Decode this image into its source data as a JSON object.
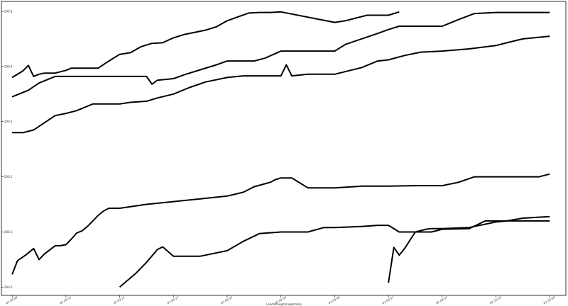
{
  "chart_data": {
    "type": "line",
    "title": "",
    "xlabel": "Leadsolve@time@stamp",
    "ylabel": "",
    "x_ticks": [
      "02 09:09",
      "02 09:15",
      "02 09:21",
      "02 09:27",
      "02 09:33",
      "02 09:39",
      "02 09:45",
      "02 09:51",
      "02 09:57",
      "02 10:03",
      "02 10:09"
    ],
    "y_ticks": [
      {
        "value": 200.0,
        "label": "200.0"
      },
      {
        "value": 200.1,
        "label": "200.1"
      },
      {
        "value": 200.2,
        "label": "200.2"
      },
      {
        "value": 200.3,
        "label": "200.3"
      },
      {
        "value": 200.4,
        "label": "200.4"
      },
      {
        "value": 200.5,
        "label": "200.5"
      }
    ],
    "xlim": [
      -0.2,
      10.3
    ],
    "ylim": [
      199.985,
      200.518
    ],
    "grid": false,
    "line_color": "#000000",
    "series": [
      {
        "x": [
          0,
          0.2,
          0.3,
          0.4,
          0.45,
          0.5,
          0.6,
          0.8,
          1.0,
          1.1,
          1.3,
          1.5,
          1.6,
          1.8,
          2.0,
          2.2,
          2.4,
          2.6,
          2.8,
          3.0,
          3.2,
          3.4,
          3.6,
          3.8,
          4.0,
          4.2,
          4.4,
          4.6,
          4.8,
          5.0,
          6.0,
          6.2,
          6.4,
          6.6,
          6.8,
          7.0,
          7.2
        ],
        "y": [
          200.38,
          200.392,
          200.402,
          200.382,
          200.384,
          200.386,
          200.388,
          200.388,
          200.393,
          200.397,
          200.397,
          200.397,
          200.397,
          200.41,
          200.422,
          200.425,
          200.436,
          200.442,
          200.443,
          200.452,
          200.458,
          200.462,
          200.466,
          200.472,
          200.483,
          200.49,
          200.497,
          200.498,
          200.498,
          200.499,
          200.48,
          200.483,
          200.488,
          200.493,
          200.493,
          200.493,
          200.499
        ]
      },
      {
        "x": [
          0,
          0.3,
          0.5,
          0.8,
          1.0,
          1.5,
          2.0,
          2.5,
          2.6,
          2.7,
          3.0,
          3.2,
          3.5,
          3.8,
          4.0,
          4.5,
          4.7,
          5.0,
          5.5,
          6.0,
          6.2,
          6.5,
          6.8,
          7.0,
          7.2,
          7.5,
          8.0,
          8.3,
          8.6,
          9.0,
          9.5,
          10.0
        ],
        "y": [
          200.345,
          200.357,
          200.37,
          200.382,
          200.382,
          200.382,
          200.382,
          200.382,
          200.368,
          200.375,
          200.378,
          200.385,
          200.394,
          200.403,
          200.41,
          200.41,
          200.415,
          200.428,
          200.428,
          200.428,
          200.44,
          200.45,
          200.46,
          200.467,
          200.473,
          200.473,
          200.473,
          200.485,
          200.496,
          200.498,
          200.498,
          200.498
        ]
      },
      {
        "x": [
          0,
          0.2,
          0.4,
          0.6,
          0.8,
          1.0,
          1.2,
          1.5,
          1.8,
          2.0,
          2.2,
          2.5,
          2.7,
          3.0,
          3.3,
          3.6,
          4.0,
          4.3,
          4.5,
          5.0,
          5.1,
          5.2,
          5.5,
          6.0,
          6.5,
          6.8,
          7.0,
          7.3,
          7.6,
          8.0,
          8.5,
          9.0,
          9.2,
          9.5,
          10.0
        ],
        "y": [
          200.28,
          200.28,
          200.285,
          200.298,
          200.311,
          200.315,
          200.32,
          200.332,
          200.332,
          200.332,
          200.335,
          200.337,
          200.343,
          200.35,
          200.362,
          200.372,
          200.38,
          200.383,
          200.383,
          200.383,
          200.403,
          200.383,
          200.386,
          200.386,
          200.398,
          200.41,
          200.412,
          200.42,
          200.426,
          200.428,
          200.432,
          200.438,
          200.443,
          200.45,
          200.455
        ]
      },
      {
        "x": [
          0,
          0.1,
          0.25,
          0.4,
          0.5,
          0.6,
          0.8,
          0.9,
          1.0,
          1.1,
          1.2,
          1.3,
          1.4,
          1.5,
          1.6,
          1.7,
          1.8,
          2.0,
          2.5,
          3.0,
          3.5,
          4.0,
          4.3,
          4.5,
          4.8,
          4.9,
          5.0,
          5.2,
          5.5,
          6.0,
          6.5,
          7.0,
          7.5,
          8.0,
          8.3,
          8.6,
          9.0,
          9.5,
          9.8,
          10.0
        ],
        "y": [
          200.023,
          200.048,
          200.058,
          200.07,
          200.05,
          200.06,
          200.075,
          200.075,
          200.077,
          200.087,
          200.098,
          200.102,
          200.11,
          200.12,
          200.13,
          200.138,
          200.143,
          200.143,
          200.15,
          200.155,
          200.16,
          200.165,
          200.172,
          200.182,
          200.19,
          200.195,
          200.198,
          200.198,
          200.18,
          200.18,
          200.183,
          200.183,
          200.184,
          200.184,
          200.19,
          200.2,
          200.2,
          200.2,
          200.2,
          200.205
        ]
      },
      {
        "x": [
          2,
          2.3,
          2.5,
          2.7,
          2.8,
          3.0,
          3.5,
          4.0,
          4.3,
          4.6,
          5.0,
          5.5,
          5.8,
          6.0,
          6.5,
          6.8,
          7.0,
          7.2,
          7.4,
          7.6,
          7.8,
          8.0,
          8.5,
          8.8,
          9.0,
          9.5,
          9.8,
          10.0
        ],
        "y": [
          200.0,
          200.025,
          200.045,
          200.068,
          200.073,
          200.056,
          200.056,
          200.066,
          200.083,
          200.097,
          200.1,
          200.1,
          200.108,
          200.108,
          200.11,
          200.112,
          200.112,
          200.1,
          200.1,
          200.1,
          200.1,
          200.105,
          200.106,
          200.12,
          200.12,
          200.12,
          200.12,
          200.12
        ]
      },
      {
        "x": [
          7.0,
          7.1,
          7.2,
          7.3,
          7.4,
          7.5,
          7.7,
          7.8,
          8.0,
          8.5,
          9.0,
          9.2,
          9.5,
          10.0
        ],
        "y": [
          200.008,
          200.072,
          200.058,
          200.07,
          200.085,
          200.1,
          200.105,
          200.106,
          200.106,
          200.108,
          200.118,
          200.12,
          200.125,
          200.128
        ]
      }
    ]
  }
}
